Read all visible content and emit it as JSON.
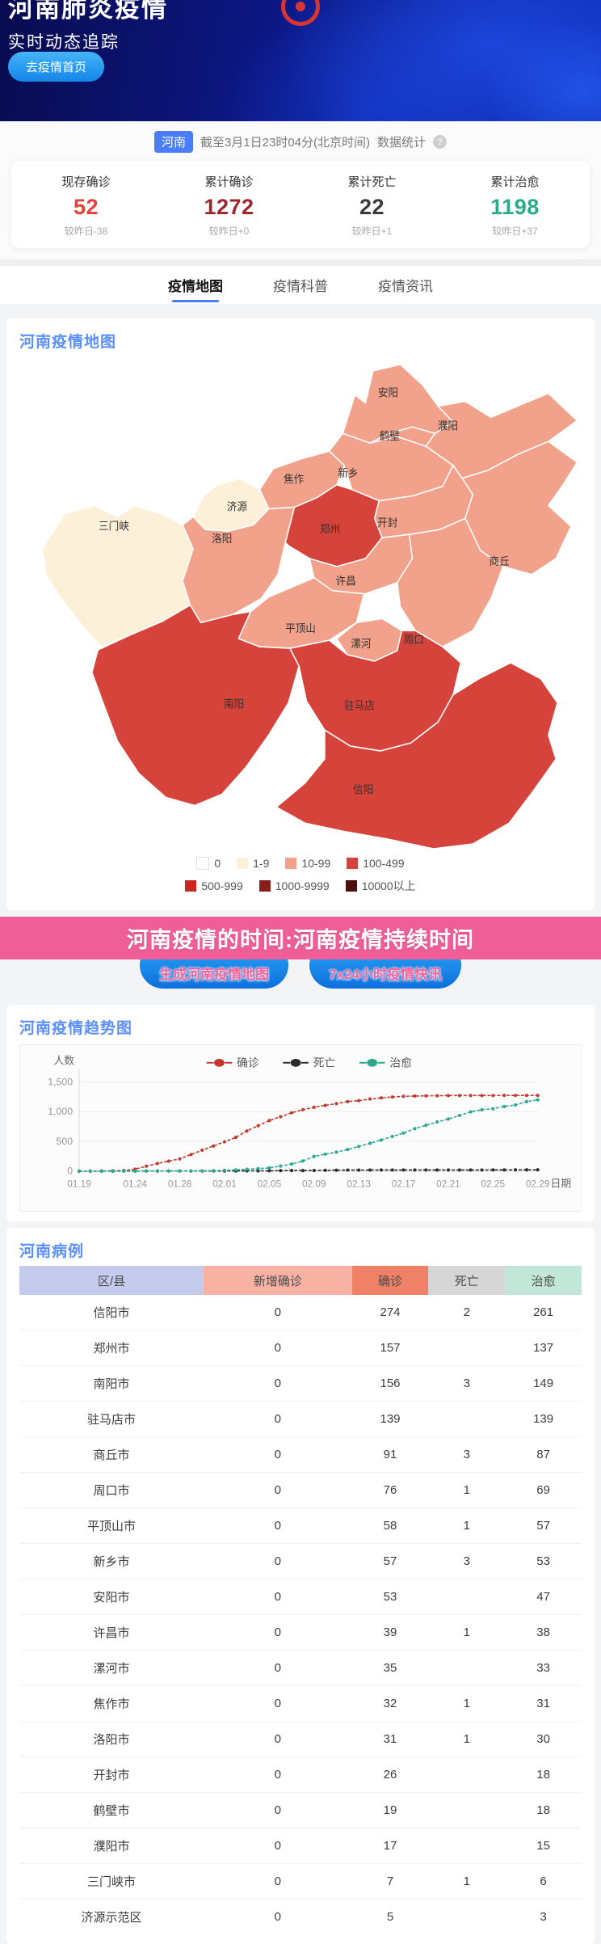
{
  "hero": {
    "title": "河南肺炎疫情",
    "subtitle": "实时动态追踪",
    "home_button": "去疫情首页"
  },
  "stats_bar": {
    "region_badge": "河南",
    "asof": "截至3月1日23时04分(北京时间)",
    "label": "数据统计",
    "help_icon": "?"
  },
  "summary": {
    "cards": [
      {
        "label": "现存确诊",
        "value": "52",
        "delta": "较昨日-38",
        "color": "#e5413a"
      },
      {
        "label": "累计确诊",
        "value": "1272",
        "delta": "较昨日+0",
        "color": "#9c262b"
      },
      {
        "label": "累计死亡",
        "value": "22",
        "delta": "较昨日+1",
        "color": "#3a3a3a"
      },
      {
        "label": "累计治愈",
        "value": "1198",
        "delta": "较昨日+37",
        "color": "#2aa98c"
      }
    ]
  },
  "tabs": [
    {
      "label": "疫情地图",
      "active": true
    },
    {
      "label": "疫情科普",
      "active": false
    },
    {
      "label": "疫情资讯",
      "active": false
    }
  ],
  "map_section": {
    "title": "河南疫情地图",
    "regions": [
      {
        "name": "安阳",
        "level": "10-99"
      },
      {
        "name": "鹤壁",
        "level": "10-99"
      },
      {
        "name": "濮阳",
        "level": "10-99"
      },
      {
        "name": "新乡",
        "level": "10-99"
      },
      {
        "name": "焦作",
        "level": "10-99"
      },
      {
        "name": "济源",
        "level": "1-9"
      },
      {
        "name": "三门峡",
        "level": "1-9"
      },
      {
        "name": "洛阳",
        "level": "10-99"
      },
      {
        "name": "郑州",
        "level": "100-499"
      },
      {
        "name": "开封",
        "level": "10-99"
      },
      {
        "name": "商丘",
        "level": "10-99"
      },
      {
        "name": "许昌",
        "level": "10-99"
      },
      {
        "name": "平顶山",
        "level": "10-99"
      },
      {
        "name": "漯河",
        "level": "10-99"
      },
      {
        "name": "周口",
        "level": "10-99"
      },
      {
        "name": "南阳",
        "level": "100-499"
      },
      {
        "name": "驻马店",
        "level": "100-499"
      },
      {
        "name": "信阳",
        "level": "100-499"
      }
    ],
    "legend": [
      {
        "label": "0",
        "color": "#ffffff"
      },
      {
        "label": "1-9",
        "color": "#fdf0d8"
      },
      {
        "label": "10-99",
        "color": "#f2a18a"
      },
      {
        "label": "100-499",
        "color": "#d5433a"
      },
      {
        "label": "500-999",
        "color": "#cb2723"
      },
      {
        "label": "1000-9999",
        "color": "#871f1b"
      },
      {
        "label": "10000以上",
        "color": "#4c100e"
      }
    ]
  },
  "banner": {
    "text": "河南疫情的时间:河南疫情持续时间"
  },
  "actions": [
    {
      "label": "生成河南疫情地图"
    },
    {
      "label": "7x24小时疫情快讯"
    }
  ],
  "trend_section": {
    "title": "河南疫情趋势图"
  },
  "chart_data": {
    "type": "line",
    "title": "河南疫情趋势图",
    "xlabel": "日期",
    "ylabel": "人数",
    "ylim": [
      0,
      1500
    ],
    "yticks": [
      0,
      500,
      1000,
      1500
    ],
    "grid": true,
    "legend_position": "top",
    "x": [
      "01.19",
      "01.20",
      "01.21",
      "01.22",
      "01.23",
      "01.24",
      "01.25",
      "01.26",
      "01.27",
      "01.28",
      "01.29",
      "01.30",
      "01.31",
      "02.01",
      "02.02",
      "02.03",
      "02.04",
      "02.05",
      "02.06",
      "02.07",
      "02.08",
      "02.09",
      "02.10",
      "02.11",
      "02.12",
      "02.13",
      "02.14",
      "02.15",
      "02.16",
      "02.17",
      "02.18",
      "02.19",
      "02.20",
      "02.21",
      "02.22",
      "02.23",
      "02.24",
      "02.25",
      "02.26",
      "02.27",
      "02.28",
      "02.29"
    ],
    "x_tick_labels": [
      "01.19",
      "01.24",
      "01.28",
      "02.01",
      "02.05",
      "02.09",
      "02.13",
      "02.17",
      "02.21",
      "02.25",
      "02.29"
    ],
    "series": [
      {
        "name": "确诊",
        "color": "#c0392b",
        "values": [
          0,
          0,
          1,
          5,
          9,
          32,
          83,
          128,
          168,
          206,
          278,
          352,
          422,
          493,
          566,
          675,
          764,
          851,
          914,
          981,
          1033,
          1073,
          1105,
          1135,
          1169,
          1184,
          1212,
          1231,
          1246,
          1257,
          1262,
          1265,
          1267,
          1270,
          1271,
          1271,
          1271,
          1271,
          1272,
          1272,
          1272,
          1272
        ]
      },
      {
        "name": "死亡",
        "color": "#2b2b2b",
        "values": [
          0,
          0,
          0,
          0,
          0,
          0,
          1,
          1,
          1,
          2,
          2,
          2,
          2,
          3,
          3,
          4,
          4,
          6,
          8,
          9,
          10,
          11,
          13,
          16,
          17,
          17,
          19,
          19,
          19,
          19,
          19,
          19,
          19,
          19,
          19,
          19,
          19,
          20,
          20,
          21,
          22,
          22
        ]
      },
      {
        "name": "治愈",
        "color": "#2ba98e",
        "values": [
          0,
          0,
          0,
          0,
          0,
          0,
          0,
          0,
          1,
          2,
          3,
          4,
          7,
          14,
          20,
          31,
          41,
          53,
          85,
          119,
          170,
          246,
          285,
          319,
          363,
          415,
          468,
          522,
          582,
          639,
          712,
          770,
          827,
          876,
          935,
          995,
          1031,
          1049,
          1086,
          1112,
          1168,
          1198
        ]
      }
    ]
  },
  "table_section": {
    "title": "河南病例",
    "columns": [
      {
        "label": "区/县",
        "bg": "#c5cbec"
      },
      {
        "label": "新增确诊",
        "bg": "#f7b2a4"
      },
      {
        "label": "确诊",
        "bg": "#ee8166"
      },
      {
        "label": "死亡",
        "bg": "#d6d6d6"
      },
      {
        "label": "治愈",
        "bg": "#c2e7d9"
      }
    ],
    "rows": [
      [
        "信阳市",
        "0",
        "274",
        "2",
        "261"
      ],
      [
        "郑州市",
        "0",
        "157",
        "",
        "137"
      ],
      [
        "南阳市",
        "0",
        "156",
        "3",
        "149"
      ],
      [
        "驻马店市",
        "0",
        "139",
        "",
        "139"
      ],
      [
        "商丘市",
        "0",
        "91",
        "3",
        "87"
      ],
      [
        "周口市",
        "0",
        "76",
        "1",
        "69"
      ],
      [
        "平顶山市",
        "0",
        "58",
        "1",
        "57"
      ],
      [
        "新乡市",
        "0",
        "57",
        "3",
        "53"
      ],
      [
        "安阳市",
        "0",
        "53",
        "",
        "47"
      ],
      [
        "许昌市",
        "0",
        "39",
        "1",
        "38"
      ],
      [
        "漯河市",
        "0",
        "35",
        "",
        "33"
      ],
      [
        "焦作市",
        "0",
        "32",
        "1",
        "31"
      ],
      [
        "洛阳市",
        "0",
        "31",
        "1",
        "30"
      ],
      [
        "开封市",
        "0",
        "26",
        "",
        "18"
      ],
      [
        "鹤壁市",
        "0",
        "19",
        "",
        "18"
      ],
      [
        "濮阳市",
        "0",
        "17",
        "",
        "15"
      ],
      [
        "三门峡市",
        "0",
        "7",
        "1",
        "6"
      ],
      [
        "济源示范区",
        "0",
        "5",
        "",
        "3"
      ]
    ]
  }
}
